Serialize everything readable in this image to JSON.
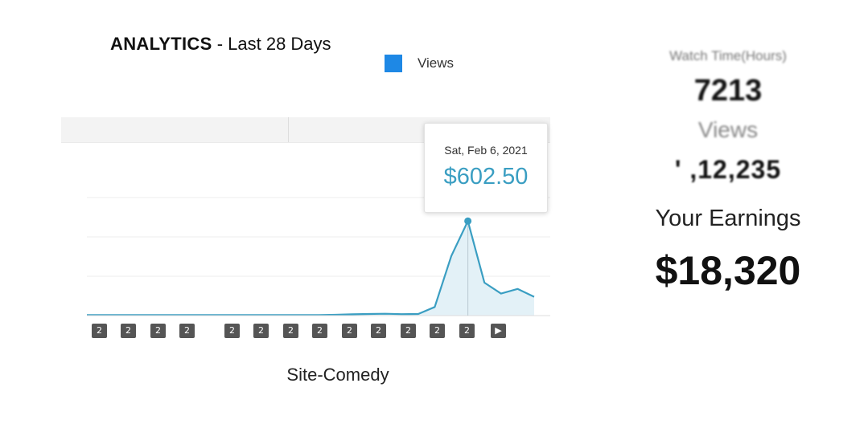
{
  "header": {
    "title_strong": "ANALYTICS",
    "title_light": "- Last 28 Days"
  },
  "legend": {
    "label": "Views",
    "color": "#1e88e5"
  },
  "tooltip": {
    "date": "Sat, Feb 6, 2021",
    "value": "$602.50"
  },
  "caption": "Site-Comedy",
  "stats": {
    "watch_time_label": "Watch Time(Hours)",
    "watch_time_value": "7213",
    "views_label": "Views",
    "views_value": "' ,12,235",
    "earnings_label": "Your Earnings",
    "earnings_value": "$18,320"
  },
  "badges": [
    "2",
    "2",
    "2",
    "2",
    "2",
    "2",
    "2",
    "2",
    "2",
    "2",
    "2",
    "2",
    "2",
    "▶"
  ],
  "chart_data": {
    "type": "area",
    "line_color": "#3a9ec2",
    "fill_color": "#e3f1f7",
    "x": [
      0,
      1,
      2,
      3,
      4,
      5,
      6,
      7,
      8,
      9,
      10,
      11,
      12,
      13,
      14,
      15,
      16,
      17,
      18,
      19,
      20,
      21,
      22,
      23,
      24,
      25,
      26,
      27
    ],
    "values": [
      3,
      3,
      3,
      3,
      3,
      3,
      3,
      3,
      3,
      3,
      3,
      3,
      3,
      3,
      3,
      5,
      8,
      10,
      12,
      9,
      10,
      55,
      380,
      602.5,
      210,
      140,
      170,
      120
    ],
    "highlight_index": 23,
    "ylim": [
      0,
      650
    ],
    "gridlines": 3
  }
}
